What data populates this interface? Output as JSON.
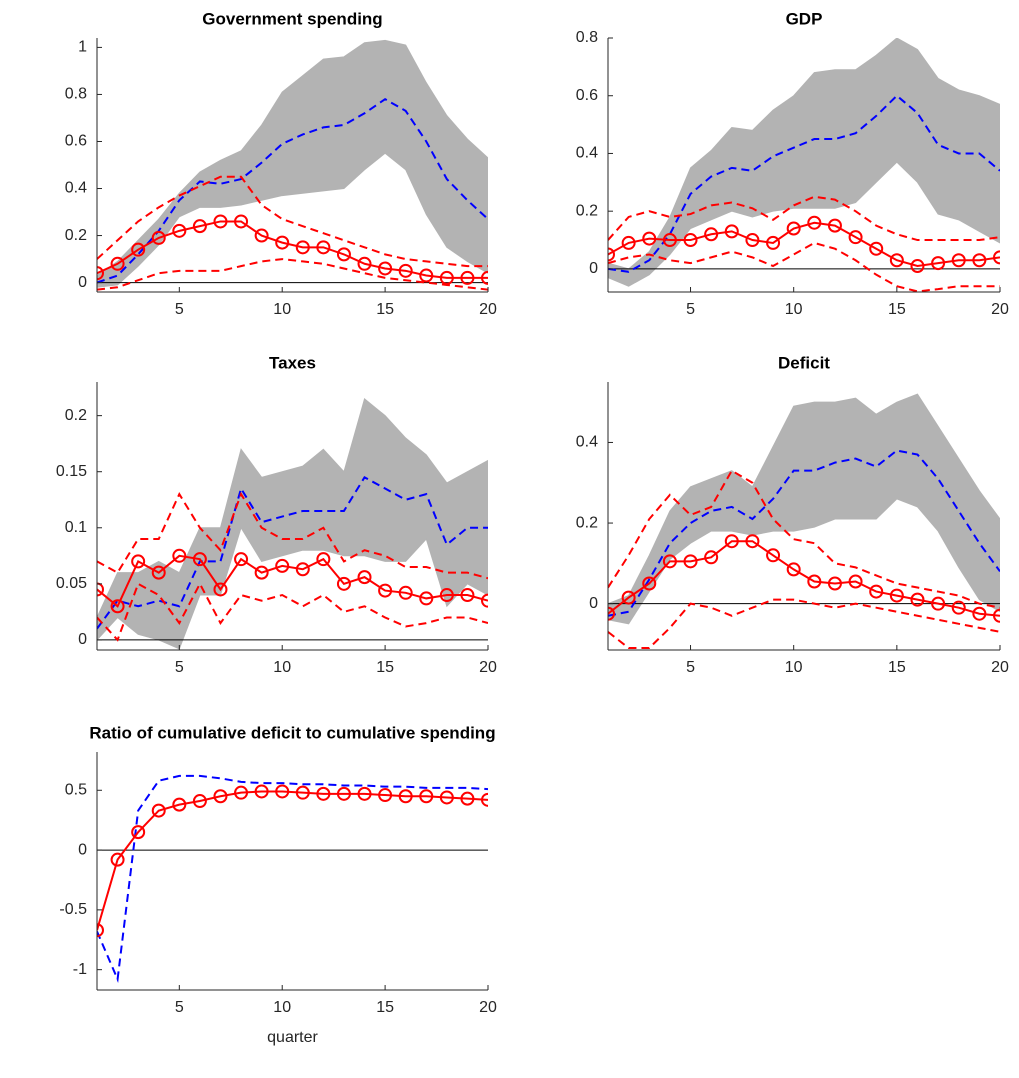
{
  "chart_data": [
    {
      "type": "line",
      "title": "Government spending",
      "x": [
        1,
        2,
        3,
        4,
        5,
        6,
        7,
        8,
        9,
        10,
        11,
        12,
        13,
        14,
        15,
        16,
        17,
        18,
        19,
        20
      ],
      "xlim": [
        1,
        20
      ],
      "xticks": [
        5,
        10,
        15,
        20
      ],
      "ylim": [
        -0.04,
        1.04
      ],
      "yticks": [
        0,
        0.2,
        0.4,
        0.6,
        0.8,
        1
      ],
      "zero_line": true,
      "band": {
        "color": "#b3b3b3",
        "upper": [
          0.03,
          0.09,
          0.18,
          0.27,
          0.38,
          0.47,
          0.52,
          0.56,
          0.67,
          0.81,
          0.88,
          0.95,
          0.96,
          1.02,
          1.03,
          1.01,
          0.85,
          0.71,
          0.61,
          0.53
        ],
        "lower": [
          -0.02,
          -0.01,
          0.07,
          0.16,
          0.28,
          0.32,
          0.32,
          0.33,
          0.35,
          0.37,
          0.38,
          0.39,
          0.4,
          0.48,
          0.55,
          0.48,
          0.29,
          0.15,
          0.09,
          0.04
        ]
      },
      "series": [
        {
          "color": "#0000ff",
          "style": "dashed",
          "values": [
            0.0,
            0.03,
            0.12,
            0.22,
            0.35,
            0.43,
            0.42,
            0.44,
            0.51,
            0.59,
            0.63,
            0.66,
            0.67,
            0.72,
            0.78,
            0.73,
            0.6,
            0.44,
            0.35,
            0.27
          ]
        },
        {
          "color": "#ff0000",
          "style": "dashed",
          "values": [
            0.1,
            0.18,
            0.26,
            0.32,
            0.37,
            0.41,
            0.45,
            0.45,
            0.33,
            0.27,
            0.24,
            0.21,
            0.18,
            0.15,
            0.12,
            0.1,
            0.09,
            0.08,
            0.07,
            0.07
          ]
        },
        {
          "color": "#ff0000",
          "style": "dashed",
          "values": [
            -0.03,
            -0.02,
            0.01,
            0.04,
            0.05,
            0.05,
            0.05,
            0.07,
            0.09,
            0.1,
            0.09,
            0.08,
            0.06,
            0.04,
            0.02,
            0.01,
            0.0,
            -0.01,
            -0.02,
            -0.03
          ]
        },
        {
          "color": "#ff0000",
          "style": "solid",
          "marker": "circle",
          "values": [
            0.04,
            0.08,
            0.14,
            0.19,
            0.22,
            0.24,
            0.26,
            0.26,
            0.2,
            0.17,
            0.15,
            0.15,
            0.12,
            0.08,
            0.06,
            0.05,
            0.03,
            0.02,
            0.02,
            0.02
          ]
        }
      ]
    },
    {
      "type": "line",
      "title": "GDP",
      "x": [
        1,
        2,
        3,
        4,
        5,
        6,
        7,
        8,
        9,
        10,
        11,
        12,
        13,
        14,
        15,
        16,
        17,
        18,
        19,
        20
      ],
      "xlim": [
        1,
        20
      ],
      "xticks": [
        5,
        10,
        15,
        20
      ],
      "ylim": [
        -0.08,
        0.8
      ],
      "yticks": [
        0,
        0.2,
        0.4,
        0.6,
        0.8
      ],
      "zero_line": true,
      "band": {
        "color": "#b3b3b3",
        "upper": [
          0.02,
          0.0,
          0.06,
          0.18,
          0.35,
          0.41,
          0.49,
          0.48,
          0.55,
          0.6,
          0.68,
          0.69,
          0.69,
          0.74,
          0.8,
          0.76,
          0.66,
          0.62,
          0.6,
          0.57
        ],
        "lower": [
          -0.03,
          -0.06,
          -0.02,
          0.05,
          0.14,
          0.17,
          0.2,
          0.18,
          0.2,
          0.21,
          0.21,
          0.21,
          0.23,
          0.3,
          0.37,
          0.3,
          0.19,
          0.17,
          0.13,
          0.09
        ]
      },
      "series": [
        {
          "color": "#0000ff",
          "style": "dashed",
          "values": [
            0.0,
            -0.01,
            0.03,
            0.12,
            0.26,
            0.32,
            0.35,
            0.34,
            0.39,
            0.42,
            0.45,
            0.45,
            0.47,
            0.53,
            0.6,
            0.54,
            0.43,
            0.4,
            0.4,
            0.34
          ]
        },
        {
          "color": "#ff0000",
          "style": "dashed",
          "values": [
            0.1,
            0.18,
            0.2,
            0.18,
            0.19,
            0.22,
            0.23,
            0.21,
            0.17,
            0.22,
            0.25,
            0.24,
            0.2,
            0.15,
            0.12,
            0.1,
            0.1,
            0.1,
            0.1,
            0.11
          ]
        },
        {
          "color": "#ff0000",
          "style": "dashed",
          "values": [
            0.02,
            0.04,
            0.05,
            0.03,
            0.02,
            0.04,
            0.06,
            0.04,
            0.01,
            0.05,
            0.09,
            0.07,
            0.03,
            -0.02,
            -0.06,
            -0.078,
            -0.07,
            -0.06,
            -0.06,
            -0.06
          ]
        },
        {
          "color": "#ff0000",
          "style": "solid",
          "marker": "circle",
          "values": [
            0.05,
            0.09,
            0.105,
            0.1,
            0.1,
            0.12,
            0.13,
            0.1,
            0.09,
            0.14,
            0.16,
            0.15,
            0.11,
            0.07,
            0.03,
            0.01,
            0.02,
            0.03,
            0.03,
            0.04
          ]
        }
      ]
    },
    {
      "type": "line",
      "title": "Taxes",
      "x": [
        1,
        2,
        3,
        4,
        5,
        6,
        7,
        8,
        9,
        10,
        11,
        12,
        13,
        14,
        15,
        16,
        17,
        18,
        19,
        20
      ],
      "xlim": [
        1,
        20
      ],
      "xticks": [
        5,
        10,
        15,
        20
      ],
      "ylim": [
        -0.009,
        0.23
      ],
      "yticks": [
        0,
        0.05,
        0.1,
        0.15,
        0.2
      ],
      "zero_line": true,
      "band": {
        "color": "#b3b3b3",
        "upper": [
          0.02,
          0.06,
          0.06,
          0.07,
          0.06,
          0.1,
          0.1,
          0.17,
          0.145,
          0.15,
          0.155,
          0.17,
          0.15,
          0.215,
          0.2,
          0.18,
          0.165,
          0.14,
          0.15,
          0.16
        ],
        "lower": [
          0.0,
          0.02,
          0.005,
          0.0,
          -0.008,
          0.04,
          0.04,
          0.1,
          0.07,
          0.075,
          0.08,
          0.08,
          0.075,
          0.075,
          0.07,
          0.07,
          0.09,
          0.03,
          0.05,
          0.04
        ]
      },
      "series": [
        {
          "color": "#0000ff",
          "style": "dashed",
          "values": [
            0.01,
            0.035,
            0.03,
            0.035,
            0.03,
            0.07,
            0.07,
            0.135,
            0.105,
            0.11,
            0.115,
            0.115,
            0.115,
            0.145,
            0.135,
            0.125,
            0.13,
            0.085,
            0.1,
            0.1
          ]
        },
        {
          "color": "#ff0000",
          "style": "dashed",
          "values": [
            0.07,
            0.06,
            0.09,
            0.09,
            0.13,
            0.1,
            0.08,
            0.13,
            0.1,
            0.09,
            0.09,
            0.1,
            0.07,
            0.08,
            0.075,
            0.065,
            0.065,
            0.06,
            0.06,
            0.055
          ]
        },
        {
          "color": "#ff0000",
          "style": "dashed",
          "values": [
            0.02,
            0.0,
            0.05,
            0.04,
            0.015,
            0.05,
            0.015,
            0.04,
            0.035,
            0.04,
            0.03,
            0.04,
            0.025,
            0.03,
            0.02,
            0.012,
            0.015,
            0.02,
            0.02,
            0.015
          ]
        },
        {
          "color": "#ff0000",
          "style": "solid",
          "marker": "circle",
          "values": [
            0.045,
            0.03,
            0.07,
            0.06,
            0.075,
            0.072,
            0.045,
            0.072,
            0.06,
            0.066,
            0.063,
            0.072,
            0.05,
            0.056,
            0.044,
            0.042,
            0.037,
            0.04,
            0.04,
            0.035
          ]
        }
      ]
    },
    {
      "type": "line",
      "title": "Deficit",
      "x": [
        1,
        2,
        3,
        4,
        5,
        6,
        7,
        8,
        9,
        10,
        11,
        12,
        13,
        14,
        15,
        16,
        17,
        18,
        19,
        20
      ],
      "xlim": [
        1,
        20
      ],
      "xticks": [
        5,
        10,
        15,
        20
      ],
      "ylim": [
        -0.115,
        0.55
      ],
      "yticks": [
        0,
        0.2,
        0.4
      ],
      "zero_line": true,
      "band": {
        "color": "#b3b3b3",
        "upper": [
          0.0,
          0.02,
          0.12,
          0.23,
          0.29,
          0.31,
          0.33,
          0.29,
          0.39,
          0.49,
          0.5,
          0.5,
          0.51,
          0.47,
          0.5,
          0.52,
          0.44,
          0.36,
          0.28,
          0.21
        ],
        "lower": [
          -0.04,
          -0.05,
          0.03,
          0.11,
          0.15,
          0.18,
          0.18,
          0.17,
          0.18,
          0.18,
          0.19,
          0.21,
          0.21,
          0.21,
          0.26,
          0.24,
          0.18,
          0.09,
          0.01,
          -0.02
        ]
      },
      "series": [
        {
          "color": "#0000ff",
          "style": "dashed",
          "values": [
            -0.03,
            -0.02,
            0.06,
            0.15,
            0.2,
            0.23,
            0.24,
            0.21,
            0.26,
            0.33,
            0.33,
            0.35,
            0.36,
            0.34,
            0.38,
            0.37,
            0.31,
            0.23,
            0.15,
            0.08
          ]
        },
        {
          "color": "#ff0000",
          "style": "dashed",
          "values": [
            0.04,
            0.12,
            0.21,
            0.27,
            0.22,
            0.24,
            0.33,
            0.3,
            0.21,
            0.16,
            0.15,
            0.1,
            0.09,
            0.07,
            0.05,
            0.04,
            0.03,
            0.02,
            0.0,
            -0.01
          ]
        },
        {
          "color": "#ff0000",
          "style": "dashed",
          "values": [
            -0.07,
            -0.11,
            -0.11,
            -0.06,
            0.0,
            -0.01,
            -0.03,
            -0.01,
            0.01,
            0.01,
            0.0,
            -0.01,
            0.0,
            -0.01,
            -0.02,
            -0.03,
            -0.04,
            -0.05,
            -0.06,
            -0.07
          ]
        },
        {
          "color": "#ff0000",
          "style": "solid",
          "marker": "circle",
          "values": [
            -0.025,
            0.015,
            0.05,
            0.105,
            0.105,
            0.115,
            0.155,
            0.155,
            0.12,
            0.085,
            0.055,
            0.05,
            0.055,
            0.03,
            0.02,
            0.01,
            0.0,
            -0.01,
            -0.025,
            -0.03
          ]
        }
      ]
    },
    {
      "type": "line",
      "title": "Ratio of cumulative deficit to cumulative spending",
      "xlabel": "quarter",
      "x": [
        1,
        2,
        3,
        4,
        5,
        6,
        7,
        8,
        9,
        10,
        11,
        12,
        13,
        14,
        15,
        16,
        17,
        18,
        19,
        20
      ],
      "xlim": [
        1,
        20
      ],
      "xticks": [
        5,
        10,
        15,
        20
      ],
      "ylim": [
        -1.17,
        0.82
      ],
      "yticks": [
        -1,
        -0.5,
        0,
        0.5
      ],
      "zero_line": true,
      "series": [
        {
          "color": "#0000ff",
          "style": "dashed",
          "values": [
            -0.68,
            -1.08,
            0.33,
            0.58,
            0.62,
            0.62,
            0.6,
            0.57,
            0.56,
            0.56,
            0.55,
            0.55,
            0.54,
            0.54,
            0.53,
            0.53,
            0.52,
            0.52,
            0.52,
            0.51
          ]
        },
        {
          "color": "#ff0000",
          "style": "solid",
          "marker": "circle",
          "values": [
            -0.67,
            -0.08,
            0.15,
            0.33,
            0.38,
            0.41,
            0.45,
            0.48,
            0.49,
            0.49,
            0.48,
            0.47,
            0.47,
            0.47,
            0.46,
            0.45,
            0.45,
            0.44,
            0.43,
            0.42
          ]
        }
      ]
    }
  ]
}
